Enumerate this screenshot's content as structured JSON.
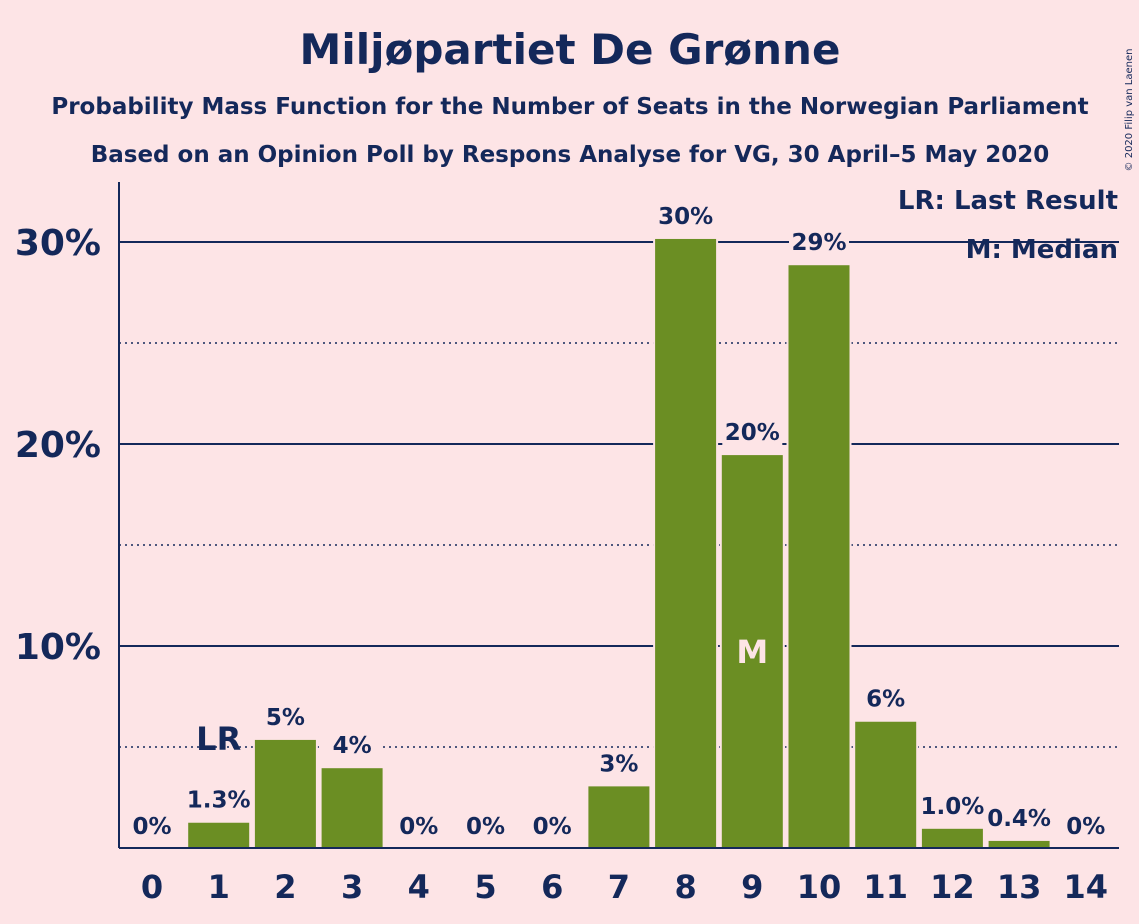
{
  "header": {
    "title": "Miljøpartiet De Grønne",
    "subtitle1": "Probability Mass Function for the Number of Seats in the Norwegian Parliament",
    "subtitle2": "Based on an Opinion Poll by Respons Analyse for VG, 30 April–5 May 2020"
  },
  "copyright": "© 2020 Filip van Laenen",
  "legend": {
    "lr": "LR: Last Result",
    "m": "M: Median"
  },
  "markers": {
    "lr_text": "LR",
    "m_text": "M"
  },
  "colors": {
    "background": "#fde4e6",
    "bar": "#6b8e23",
    "text": "#14285a"
  },
  "chart_data": {
    "type": "bar",
    "categories": [
      "0",
      "1",
      "2",
      "3",
      "4",
      "5",
      "6",
      "7",
      "8",
      "9",
      "10",
      "11",
      "12",
      "13",
      "14"
    ],
    "values": [
      0,
      1.3,
      5.4,
      4.0,
      0,
      0,
      0,
      3.1,
      30.2,
      19.5,
      28.9,
      6.3,
      1.0,
      0.4,
      0
    ],
    "data_labels": [
      "0%",
      "1.3%",
      "5%",
      "4%",
      "0%",
      "0%",
      "0%",
      "3%",
      "30%",
      "20%",
      "29%",
      "6%",
      "1.0%",
      "0.4%",
      "0%"
    ],
    "yticks": [
      10,
      20,
      30
    ],
    "ytick_labels": [
      "10%",
      "20%",
      "30%"
    ],
    "minor_gridlines": [
      5,
      15,
      25
    ],
    "ylim": [
      0,
      32.9
    ],
    "last_result": "1",
    "median": "9",
    "legend_position": "top-right"
  }
}
